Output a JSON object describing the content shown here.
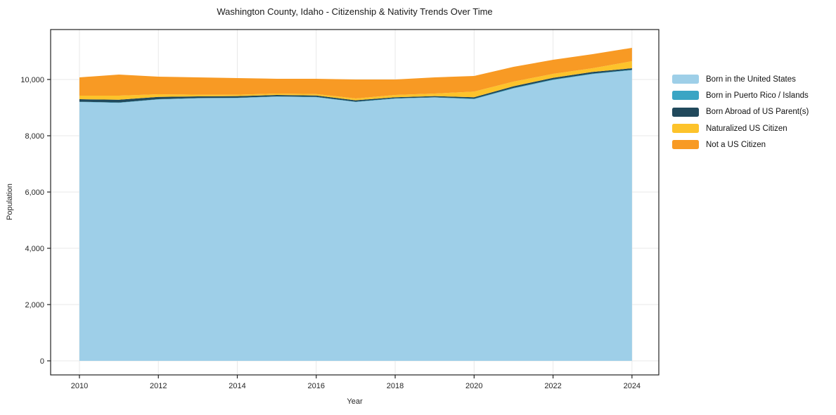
{
  "figure": {
    "title": "Washington County, Idaho - Citizenship & Nativity Trends Over Time",
    "xlabel": "Year",
    "ylabel": "Population"
  },
  "chart_data": {
    "type": "area",
    "stacked": true,
    "title": "Washington County, Idaho - Citizenship & Nativity Trends Over Time",
    "xlabel": "Year",
    "ylabel": "Population",
    "grid": true,
    "legend_position": "right-outside",
    "x": [
      2010,
      2011,
      2012,
      2013,
      2014,
      2015,
      2016,
      2017,
      2018,
      2019,
      2020,
      2021,
      2022,
      2023,
      2024
    ],
    "series": [
      {
        "name": "Born in the United States",
        "color": "#9ecfe8",
        "values": [
          9200,
          9170,
          9290,
          9330,
          9340,
          9390,
          9370,
          9200,
          9320,
          9360,
          9300,
          9680,
          9980,
          10190,
          10330
        ]
      },
      {
        "name": "Born in Puerto Rico / Islands",
        "color": "#3aa5c4",
        "values": [
          10,
          10,
          10,
          10,
          10,
          10,
          10,
          10,
          10,
          10,
          20,
          20,
          20,
          20,
          15
        ]
      },
      {
        "name": "Born Abroad of US Parent(s)",
        "color": "#21495c",
        "values": [
          90,
          100,
          80,
          60,
          60,
          50,
          50,
          50,
          40,
          40,
          50,
          60,
          60,
          60,
          55
        ]
      },
      {
        "name": "Naturalized US Citizen",
        "color": "#fdc32b",
        "values": [
          125,
          145,
          95,
          60,
          50,
          50,
          50,
          65,
          80,
          90,
          200,
          165,
          140,
          130,
          250
        ]
      },
      {
        "name": "Not a US Citizen",
        "color": "#f89a24",
        "values": [
          650,
          750,
          625,
          615,
          590,
          525,
          545,
          675,
          550,
          575,
          555,
          525,
          500,
          500,
          475
        ]
      }
    ],
    "x_ticks": [
      2010,
      2012,
      2014,
      2016,
      2018,
      2020,
      2022,
      2024
    ],
    "x_tick_labels": [
      "2010",
      "2012",
      "2014",
      "2016",
      "2018",
      "2020",
      "2022",
      "2024"
    ],
    "y_ticks": [
      0,
      2000,
      4000,
      6000,
      8000,
      10000
    ],
    "y_tick_labels": [
      "0",
      "2,000",
      "4,000",
      "6,000",
      "8,000",
      "10,000"
    ],
    "xlim": [
      2009.27,
      2024.68
    ],
    "ylim": [
      -500,
      11775
    ],
    "colors": {
      "spine": "#222222",
      "grid": "#e8e8e8",
      "tick_text": "#262626"
    }
  }
}
